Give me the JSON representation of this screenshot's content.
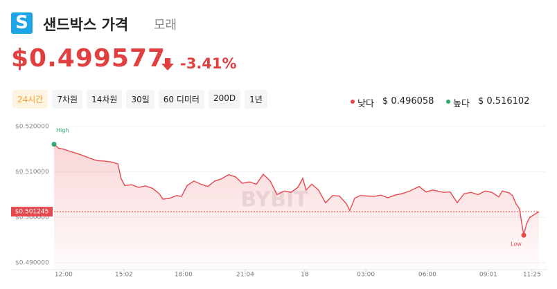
{
  "header": {
    "logo": "S",
    "title": "샌드박스 가격",
    "subtitle": "모래",
    "price": "$0.499577",
    "change": "-3.41%"
  },
  "tabs": {
    "items": [
      "24시간",
      "7차원",
      "14차원",
      "30일",
      "60 디미터",
      "200D",
      "1년"
    ],
    "active": 0
  },
  "range": {
    "low_label": "낮다",
    "low_value": "$ 0.496058",
    "high_label": "높다",
    "high_value": "$ 0.516102"
  },
  "chart_data": {
    "type": "line",
    "color": "#e5484d",
    "x": [
      0,
      0.24,
      0.48,
      0.76,
      1.11,
      1.45,
      1.8,
      2.14,
      2.49,
      2.83,
      3.18,
      3.35,
      3.53,
      3.87,
      4.22,
      4.56,
      4.91,
      5.25,
      5.43,
      5.77,
      6.12,
      6.36,
      6.64,
      6.98,
      7.33,
      7.67,
      8.02,
      8.37,
      8.71,
      9.06,
      9.4,
      9.75,
      10.09,
      10.44,
      10.79,
      11.13,
      11.48,
      11.82,
      12.17,
      12.41,
      12.58,
      12.86,
      13.2,
      13.55,
      13.9,
      14.24,
      14.59,
      14.76,
      15.0,
      15.28,
      15.63,
      15.97,
      16.32,
      16.66,
      17.01,
      17.35,
      17.7,
      18.04,
      18.22,
      18.56,
      18.91,
      19.43,
      19.77,
      20.12,
      20.46,
      20.81,
      21.16,
      21.5,
      21.85,
      22.19,
      22.37,
      22.71,
      22.88,
      23.05,
      23.23,
      23.33,
      23.44,
      23.57,
      23.74,
      23.92,
      24.2
    ],
    "values": [
      0.5161,
      0.5152,
      0.515,
      0.5146,
      0.5141,
      0.5136,
      0.513,
      0.5125,
      0.5124,
      0.5122,
      0.5118,
      0.5085,
      0.507,
      0.5072,
      0.5066,
      0.5069,
      0.5064,
      0.5052,
      0.504,
      0.5042,
      0.5048,
      0.5046,
      0.507,
      0.508,
      0.5073,
      0.5068,
      0.508,
      0.5085,
      0.5094,
      0.5089,
      0.5075,
      0.5078,
      0.5073,
      0.5095,
      0.508,
      0.505,
      0.5058,
      0.5055,
      0.5066,
      0.5086,
      0.506,
      0.5073,
      0.506,
      0.5032,
      0.5048,
      0.5047,
      0.503,
      0.5015,
      0.5042,
      0.5048,
      0.5047,
      0.5046,
      0.5049,
      0.5043,
      0.5049,
      0.5052,
      0.5057,
      0.5064,
      0.5068,
      0.5056,
      0.506,
      0.5055,
      0.5056,
      0.5032,
      0.5052,
      0.5055,
      0.505,
      0.5058,
      0.5055,
      0.5045,
      0.5058,
      0.5054,
      0.5048,
      0.503,
      0.5019,
      0.499,
      0.49606,
      0.4985,
      0.5,
      0.5005,
      0.50125
    ],
    "xlim": [
      0,
      24.2
    ],
    "xticks": [
      {
        "value": 0.48,
        "label": "12:00"
      },
      {
        "value": 3.49,
        "label": "15:02"
      },
      {
        "value": 6.46,
        "label": "18:00"
      },
      {
        "value": 9.54,
        "label": "21:04"
      },
      {
        "value": 12.51,
        "label": "18"
      },
      {
        "value": 15.56,
        "label": "03:00"
      },
      {
        "value": 18.63,
        "label": "06:00"
      },
      {
        "value": 21.67,
        "label": "09:01"
      },
      {
        "value": 23.85,
        "label": "11:25"
      }
    ],
    "ylim": [
      0.49,
      0.52
    ],
    "yticks": [
      {
        "value": 0.49,
        "label": "$0.490000"
      },
      {
        "value": 0.5,
        "label": "$0.500000"
      },
      {
        "value": 0.51,
        "label": "$0.510000"
      },
      {
        "value": 0.52,
        "label": "$0.520000"
      }
    ],
    "current_price": {
      "value": 0.501245,
      "label": "$0.501245"
    },
    "high_text": "High",
    "low_text": "Low",
    "watermark": "BYBIT"
  }
}
